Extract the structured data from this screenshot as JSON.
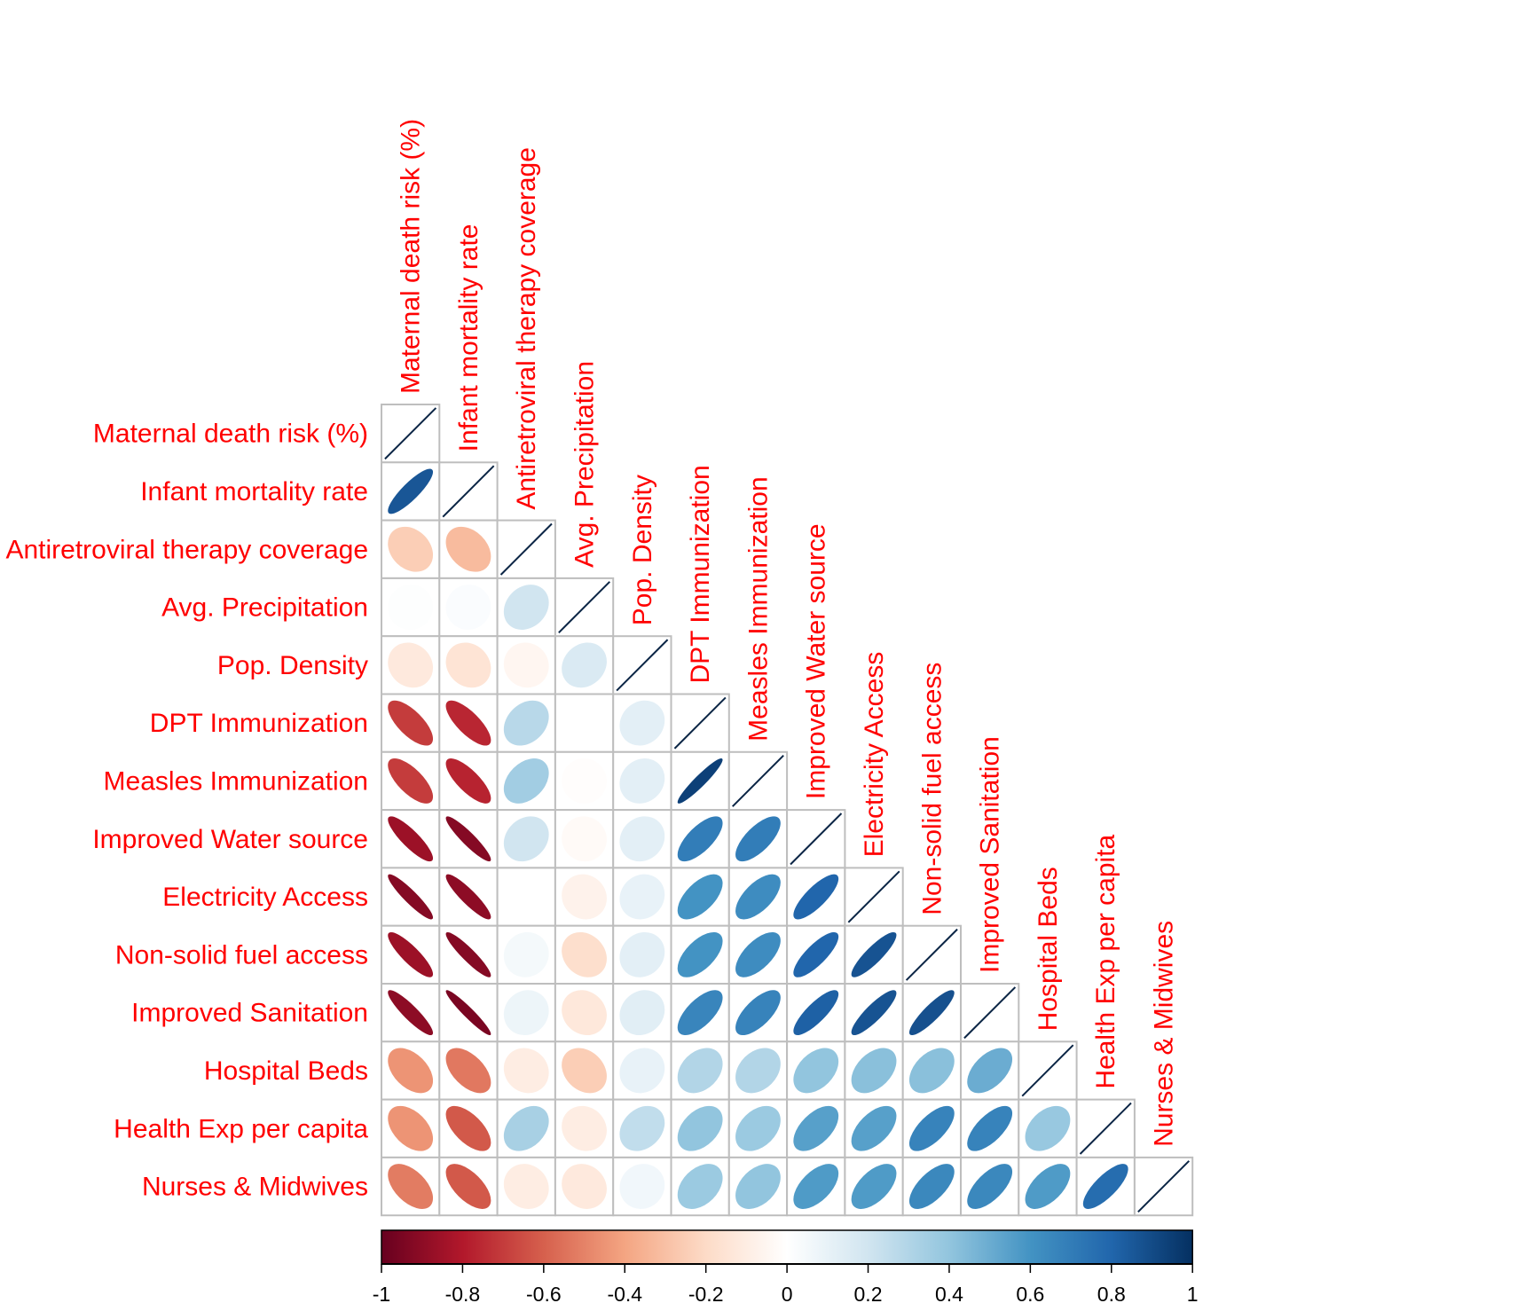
{
  "chart_data": {
    "type": "heatmap",
    "subtype": "correlation-matrix-ellipse-lower",
    "title": "",
    "variables": [
      "Maternal death risk (%)",
      "Infant mortality rate",
      "Antiretroviral therapy coverage",
      "Avg. Precipitation",
      "Pop. Density",
      "DPT Immunization",
      "Measles Immunization",
      "Improved Water source",
      "Electricity Access",
      "Non-solid fuel access",
      "Improved Sanitation",
      "Hospital Beds",
      "Health Exp per capita",
      "Nurses & Midwives"
    ],
    "lower_triangle": [
      [],
      [
        0.86
      ],
      [
        -0.25,
        -0.32
      ],
      [
        0.01,
        0.02,
        0.2
      ],
      [
        -0.12,
        -0.15,
        -0.05,
        0.16
      ],
      [
        -0.7,
        -0.76,
        0.28,
        0.0,
        0.12
      ],
      [
        -0.7,
        -0.77,
        0.35,
        -0.01,
        0.12,
        0.94
      ],
      [
        -0.86,
        -0.92,
        0.2,
        -0.03,
        0.12,
        0.7,
        0.7
      ],
      [
        -0.92,
        -0.9,
        0.0,
        -0.07,
        0.1,
        0.6,
        0.63,
        0.8
      ],
      [
        -0.86,
        -0.92,
        0.05,
        -0.18,
        0.12,
        0.6,
        0.63,
        0.8,
        0.87
      ],
      [
        -0.9,
        -0.95,
        0.08,
        -0.13,
        0.13,
        0.66,
        0.67,
        0.82,
        0.87,
        0.88
      ],
      [
        -0.45,
        -0.53,
        -0.1,
        -0.25,
        0.1,
        0.3,
        0.3,
        0.4,
        0.42,
        0.42,
        0.5
      ],
      [
        -0.45,
        -0.62,
        0.33,
        -0.1,
        0.25,
        0.4,
        0.37,
        0.55,
        0.55,
        0.67,
        0.67,
        0.38
      ],
      [
        -0.52,
        -0.62,
        -0.1,
        -0.12,
        0.06,
        0.37,
        0.4,
        0.57,
        0.57,
        0.65,
        0.65,
        0.57,
        0.77
      ]
    ],
    "diagonal": 1,
    "colorbar": {
      "range": [
        -1,
        1
      ],
      "ticks": [
        "-1",
        "-0.8",
        "-0.6",
        "-0.4",
        "-0.2",
        "0",
        "0.2",
        "0.4",
        "0.6",
        "0.8",
        "1"
      ],
      "placement": "bottom"
    },
    "colors": {
      "label": "#ff0000",
      "grid": "#bebebe",
      "diagonal_line": "#0b2545",
      "palette": [
        "#67001f",
        "#b2182b",
        "#d6604d",
        "#f4a582",
        "#fddbc7",
        "#ffffff",
        "#d1e5f0",
        "#92c5de",
        "#4393c3",
        "#2166ac",
        "#053061"
      ]
    },
    "xlabel": "",
    "ylabel": "",
    "grid": true
  }
}
